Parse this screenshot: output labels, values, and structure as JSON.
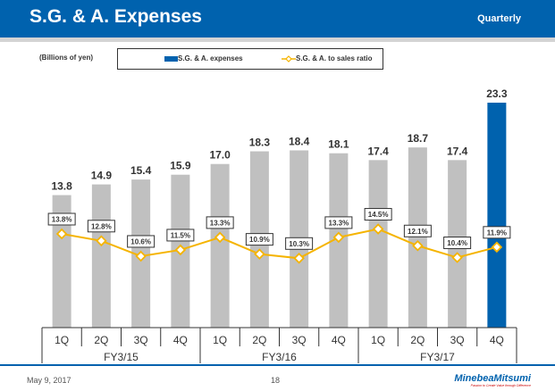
{
  "header": {
    "title": "S.G. & A. Expenses",
    "period": "Quarterly"
  },
  "footer": {
    "date": "May 9, 2017",
    "page": "18",
    "logo": "MinebeaMitsumi",
    "tagline": "Passion to Create Value through Difference"
  },
  "chart_data": {
    "type": "bar+line",
    "unit_label": "(Billions of yen)",
    "categories": [
      "1Q",
      "2Q",
      "3Q",
      "4Q",
      "1Q",
      "2Q",
      "3Q",
      "4Q",
      "1Q",
      "2Q",
      "3Q",
      "4Q"
    ],
    "groups": [
      {
        "label": "FY3/15",
        "span": 4
      },
      {
        "label": "FY3/16",
        "span": 4
      },
      {
        "label": "FY3/17",
        "span": 4
      }
    ],
    "series": [
      {
        "name": "S.G. & A. expenses",
        "type": "bar",
        "values": [
          13.8,
          14.9,
          15.4,
          15.9,
          17.0,
          18.3,
          18.4,
          18.1,
          17.4,
          18.7,
          17.4,
          23.3
        ],
        "value_labels": [
          "13.8",
          "14.9",
          "15.4",
          "15.9",
          "17.0",
          "18.3",
          "18.4",
          "18.1",
          "17.4",
          "18.7",
          "17.4",
          "23.3"
        ],
        "color": "#c0c0c0",
        "highlight_color": "#0062ae"
      },
      {
        "name": "S.G. & A. to sales ratio",
        "type": "line",
        "values": [
          13.8,
          12.8,
          10.6,
          11.5,
          13.3,
          10.9,
          10.3,
          13.3,
          14.5,
          12.1,
          10.4,
          11.9
        ],
        "value_labels": [
          "13.8%",
          "12.8%",
          "10.6%",
          "11.5%",
          "13.3%",
          "10.9%",
          "10.3%",
          "13.3%",
          "14.5%",
          "12.1%",
          "10.4%",
          "11.9%"
        ],
        "color": "#f5b400"
      }
    ],
    "legend": "top"
  }
}
